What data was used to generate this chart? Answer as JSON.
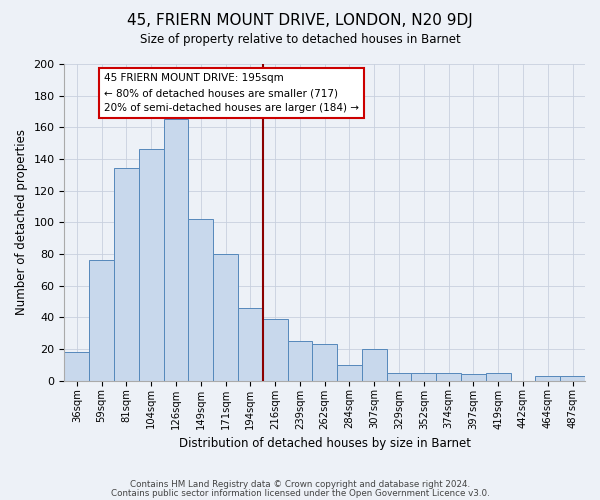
{
  "title": "45, FRIERN MOUNT DRIVE, LONDON, N20 9DJ",
  "subtitle": "Size of property relative to detached houses in Barnet",
  "xlabel": "Distribution of detached houses by size in Barnet",
  "ylabel": "Number of detached properties",
  "categories": [
    "36sqm",
    "59sqm",
    "81sqm",
    "104sqm",
    "126sqm",
    "149sqm",
    "171sqm",
    "194sqm",
    "216sqm",
    "239sqm",
    "262sqm",
    "284sqm",
    "307sqm",
    "329sqm",
    "352sqm",
    "374sqm",
    "397sqm",
    "419sqm",
    "442sqm",
    "464sqm",
    "487sqm"
  ],
  "values": [
    18,
    76,
    134,
    146,
    165,
    102,
    80,
    46,
    39,
    25,
    23,
    10,
    20,
    5,
    5,
    5,
    4,
    5,
    0,
    3,
    3
  ],
  "bar_color": "#c8d8ec",
  "bar_edge_color": "#5588bb",
  "ylim": [
    0,
    200
  ],
  "yticks": [
    0,
    20,
    40,
    60,
    80,
    100,
    120,
    140,
    160,
    180,
    200
  ],
  "property_line_color": "#8b0000",
  "annotation_title": "45 FRIERN MOUNT DRIVE: 195sqm",
  "annotation_line1": "← 80% of detached houses are smaller (717)",
  "annotation_line2": "20% of semi-detached houses are larger (184) →",
  "annotation_box_color": "#ffffff",
  "annotation_box_edge": "#cc0000",
  "footer1": "Contains HM Land Registry data © Crown copyright and database right 2024.",
  "footer2": "Contains public sector information licensed under the Open Government Licence v3.0.",
  "bg_color": "#edf1f7",
  "plot_bg_color": "#edf1f7",
  "grid_color": "#c8d0de"
}
